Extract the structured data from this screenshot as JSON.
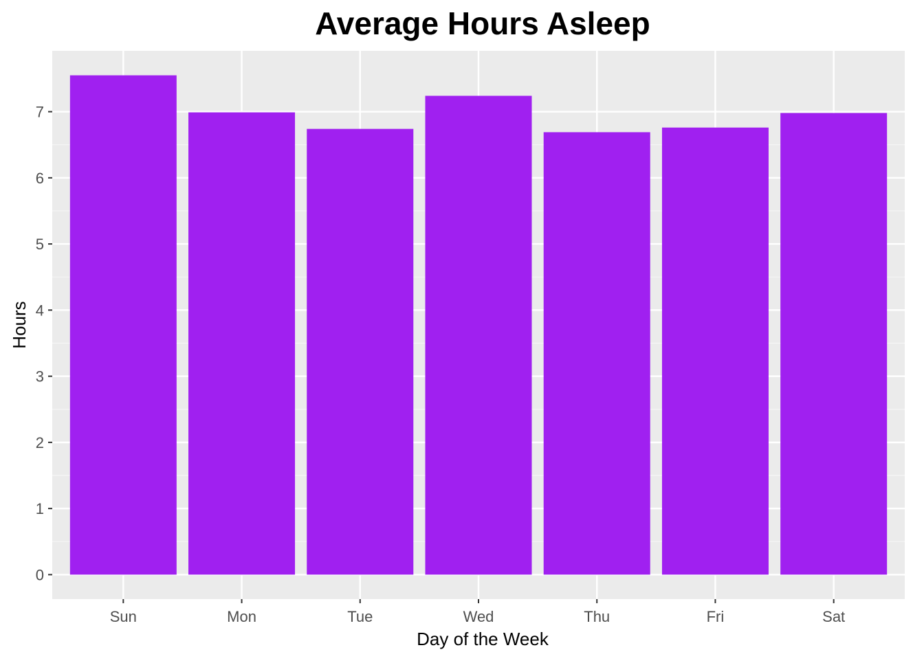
{
  "chart_data": {
    "type": "bar",
    "title": "Average Hours Asleep",
    "xlabel": "Day of the Week",
    "ylabel": "Hours",
    "categories": [
      "Sun",
      "Mon",
      "Tue",
      "Wed",
      "Thu",
      "Fri",
      "Sat"
    ],
    "values": [
      7.55,
      6.99,
      6.74,
      7.24,
      6.69,
      6.76,
      6.98
    ],
    "ylim": [
      -0.37,
      7.92
    ],
    "yticks": [
      0,
      1,
      2,
      3,
      4,
      5,
      6,
      7
    ],
    "grid": true,
    "legend": "none",
    "colors": {
      "bar": "#a020f0",
      "panel_background": "#ebebeb",
      "grid_major": "#ffffff",
      "grid_minor": "#f5f5f5"
    }
  }
}
